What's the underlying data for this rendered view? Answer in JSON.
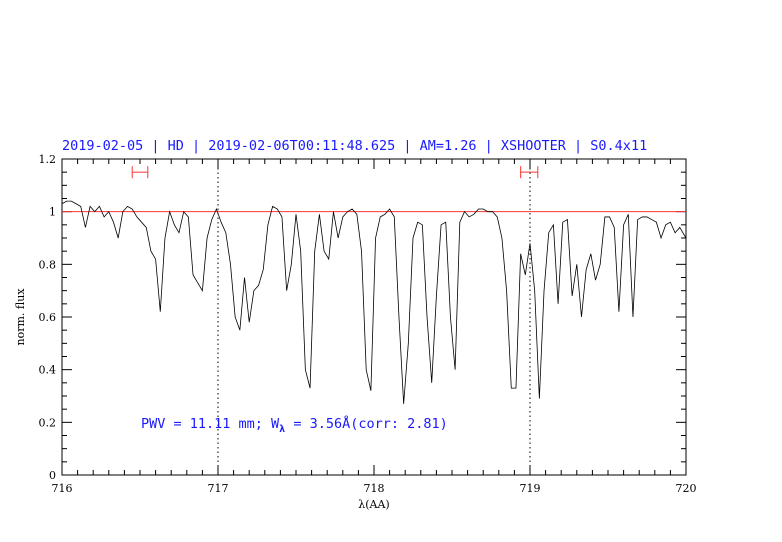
{
  "chart_data": {
    "type": "line",
    "title": "2019-02-05 | HD | 2019-02-06T00:11:48.625 | AM=1.26 | XSHOOTER | S0.4x11",
    "xlabel": "λ(AA)",
    "ylabel": "norm. flux",
    "xlim": [
      716,
      720
    ],
    "ylim": [
      0,
      1.2
    ],
    "x_ticks": [
      "716",
      "717",
      "718",
      "719",
      "720"
    ],
    "y_ticks": [
      "0",
      "0.2",
      "0.4",
      "0.6",
      "0.8",
      "1",
      "1.2"
    ],
    "x_tick_values": [
      716,
      717,
      718,
      719,
      720
    ],
    "y_tick_values": [
      0,
      0.2,
      0.4,
      0.6,
      0.8,
      1.0,
      1.2
    ],
    "reference_line": {
      "y": 1.0,
      "color": "#ff3333"
    },
    "vertical_markers": [
      717.0,
      719.0
    ],
    "continuum_windows": [
      {
        "x1": 716.45,
        "x2": 716.55,
        "y": 1.15
      },
      {
        "x1": 718.94,
        "x2": 719.05,
        "y": 1.15
      }
    ],
    "annotation": {
      "prefix": "PWV  =  11.11  mm;  W",
      "subscript": "λ",
      "suffix": "  =  3.56Å(corr: 2.81)"
    },
    "series": [
      {
        "color": "#000000",
        "x": [
          716.0,
          716.03,
          716.06,
          716.09,
          716.12,
          716.15,
          716.18,
          716.21,
          716.24,
          716.27,
          716.3,
          716.33,
          716.36,
          716.39,
          716.42,
          716.45,
          716.48,
          716.51,
          716.54,
          716.57,
          716.6,
          716.63,
          716.66,
          716.69,
          716.72,
          716.75,
          716.78,
          716.81,
          716.84,
          716.87,
          716.9,
          716.93,
          716.96,
          716.99,
          717.02,
          717.05,
          717.08,
          717.11,
          717.14,
          717.17,
          717.2,
          717.23,
          717.26,
          717.29,
          717.32,
          717.35,
          717.38,
          717.41,
          717.44,
          717.47,
          717.5,
          717.53,
          717.56,
          717.59,
          717.62,
          717.65,
          717.68,
          717.71,
          717.74,
          717.77,
          717.8,
          717.83,
          717.86,
          717.89,
          717.92,
          717.95,
          717.98,
          718.01,
          718.04,
          718.07,
          718.1,
          718.13,
          718.16,
          718.19,
          718.22,
          718.25,
          718.28,
          718.31,
          718.34,
          718.37,
          718.4,
          718.43,
          718.46,
          718.49,
          718.52,
          718.55,
          718.58,
          718.61,
          718.64,
          718.67,
          718.7,
          718.73,
          718.76,
          718.79,
          718.82,
          718.85,
          718.88,
          718.91,
          718.94,
          718.97,
          719.0,
          719.03,
          719.06,
          719.09,
          719.12,
          719.15,
          719.18,
          719.21,
          719.24,
          719.27,
          719.3,
          719.33,
          719.36,
          719.39,
          719.42,
          719.45,
          719.48,
          719.51,
          719.54,
          719.57,
          719.6,
          719.63,
          719.66,
          719.69,
          719.72,
          719.75,
          719.78,
          719.81,
          719.84,
          719.87,
          719.9,
          719.93,
          719.96,
          720.0
        ],
        "y": [
          1.03,
          1.04,
          1.04,
          1.03,
          1.02,
          0.94,
          1.02,
          1.0,
          1.02,
          0.98,
          1.0,
          0.96,
          0.9,
          1.0,
          1.02,
          1.01,
          0.98,
          0.96,
          0.94,
          0.85,
          0.82,
          0.62,
          0.9,
          1.0,
          0.95,
          0.92,
          1.0,
          0.98,
          0.76,
          0.73,
          0.7,
          0.9,
          0.97,
          1.01,
          0.96,
          0.92,
          0.8,
          0.6,
          0.55,
          0.75,
          0.58,
          0.7,
          0.72,
          0.78,
          0.95,
          1.02,
          1.01,
          0.98,
          0.7,
          0.8,
          0.99,
          0.85,
          0.4,
          0.33,
          0.85,
          0.99,
          0.85,
          0.82,
          1.0,
          0.9,
          0.98,
          1.0,
          1.01,
          0.99,
          0.85,
          0.4,
          0.32,
          0.9,
          0.98,
          0.99,
          1.01,
          0.98,
          0.6,
          0.27,
          0.5,
          0.9,
          0.96,
          0.95,
          0.6,
          0.35,
          0.68,
          0.95,
          0.96,
          0.6,
          0.4,
          0.96,
          1.0,
          0.98,
          0.99,
          1.01,
          1.01,
          1.0,
          1.0,
          0.98,
          0.9,
          0.7,
          0.33,
          0.33,
          0.84,
          0.76,
          0.88,
          0.7,
          0.29,
          0.7,
          0.92,
          0.95,
          0.65,
          0.96,
          0.97,
          0.68,
          0.8,
          0.6,
          0.78,
          0.84,
          0.74,
          0.8,
          0.98,
          0.98,
          0.94,
          0.62,
          0.95,
          0.99,
          0.6,
          0.97,
          0.98,
          0.98,
          0.97,
          0.96,
          0.9,
          0.95,
          0.96,
          0.92,
          0.94,
          0.9
        ]
      }
    ]
  }
}
